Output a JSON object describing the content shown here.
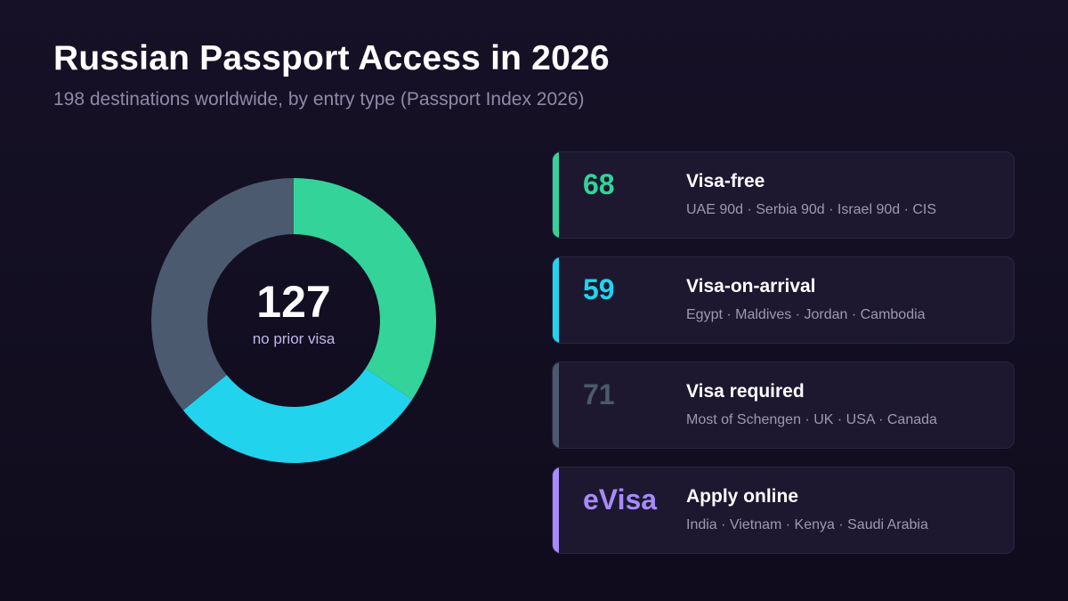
{
  "header": {
    "title": "Russian Passport Access in 2026",
    "subtitle": "198 destinations worldwide, by entry type (Passport Index 2026)"
  },
  "donut": {
    "center_value": "127",
    "center_label": "no prior visa"
  },
  "chart_data": {
    "type": "pie",
    "style": "donut",
    "categories": [
      "Visa-free",
      "Visa-on-arrival",
      "Visa required"
    ],
    "values": [
      68,
      59,
      71
    ],
    "colors": [
      "#34d399",
      "#22d3ee",
      "#4b5a6e"
    ],
    "total": 198
  },
  "cards": [
    {
      "value": "68",
      "title": "Visa-free",
      "examples": "UAE 90d · Serbia 90d · Israel 90d · CIS",
      "color": "#34d399"
    },
    {
      "value": "59",
      "title": "Visa-on-arrival",
      "examples": "Egypt · Maldives · Jordan · Cambodia",
      "color": "#22d3ee"
    },
    {
      "value": "71",
      "title": "Visa required",
      "examples": "Most of Schengen · UK · USA · Canada",
      "color": "#4b5a6e"
    },
    {
      "value": "eVisa",
      "title": "Apply online",
      "examples": "India · Vietnam · Kenya · Saudi Arabia",
      "color": "#a78bfa"
    }
  ]
}
